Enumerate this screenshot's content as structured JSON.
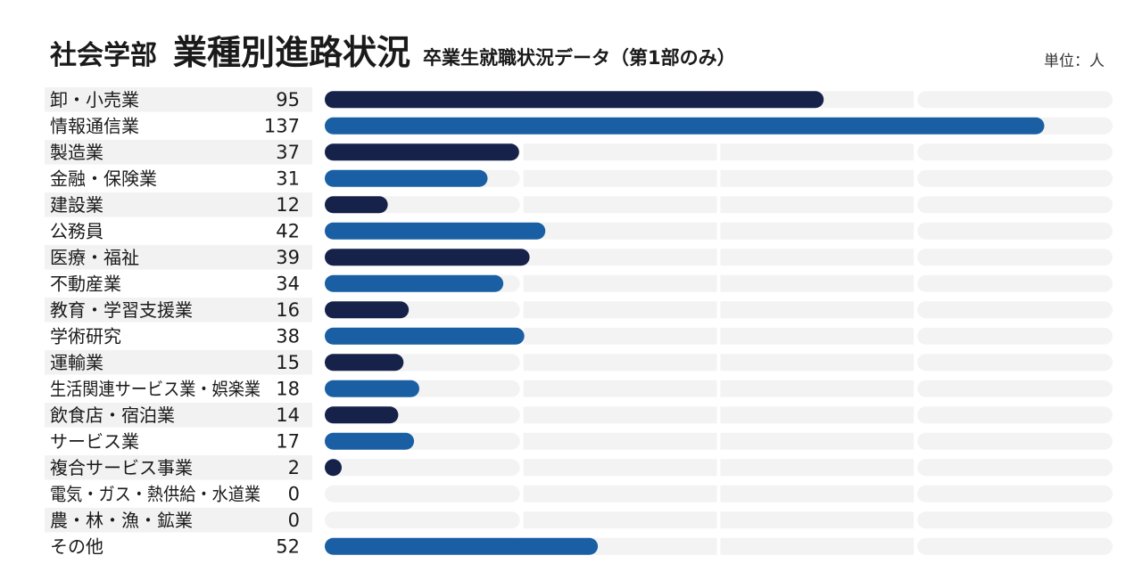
{
  "header": {
    "department": "社会学部",
    "title": "業種別進路状況",
    "subtitle": "卒業生就職状況データ（第1部のみ）",
    "unit": "単位：人"
  },
  "chart_data": {
    "type": "bar",
    "orientation": "horizontal",
    "title": "業種別進路状況",
    "subtitle": "卒業生就職状況データ（第1部のみ）",
    "unit": "単位：人",
    "categories": [
      "卸・小売業",
      "情報通信業",
      "製造業",
      "金融・保険業",
      "建設業",
      "公務員",
      "医療・福祉",
      "不動産業",
      "教育・学習支援業",
      "学術研究",
      "運輸業",
      "生活関連サービス業・娯楽業",
      "飲食店・宿泊業",
      "サービス業",
      "複合サービス事業",
      "電気・ガス・熱供給・水道業",
      "農・林・漁・鉱業",
      "その他"
    ],
    "values": [
      95,
      137,
      37,
      31,
      12,
      42,
      39,
      34,
      16,
      38,
      15,
      18,
      14,
      17,
      2,
      0,
      0,
      52
    ],
    "xlim": [
      0,
      150
    ],
    "grid": true,
    "legend": "none",
    "colors": {
      "bar_dark": "#17224a",
      "bar_blue": "#1a5fa3",
      "track": "#f3f3f3",
      "label_band": "#f2f2f2"
    }
  }
}
